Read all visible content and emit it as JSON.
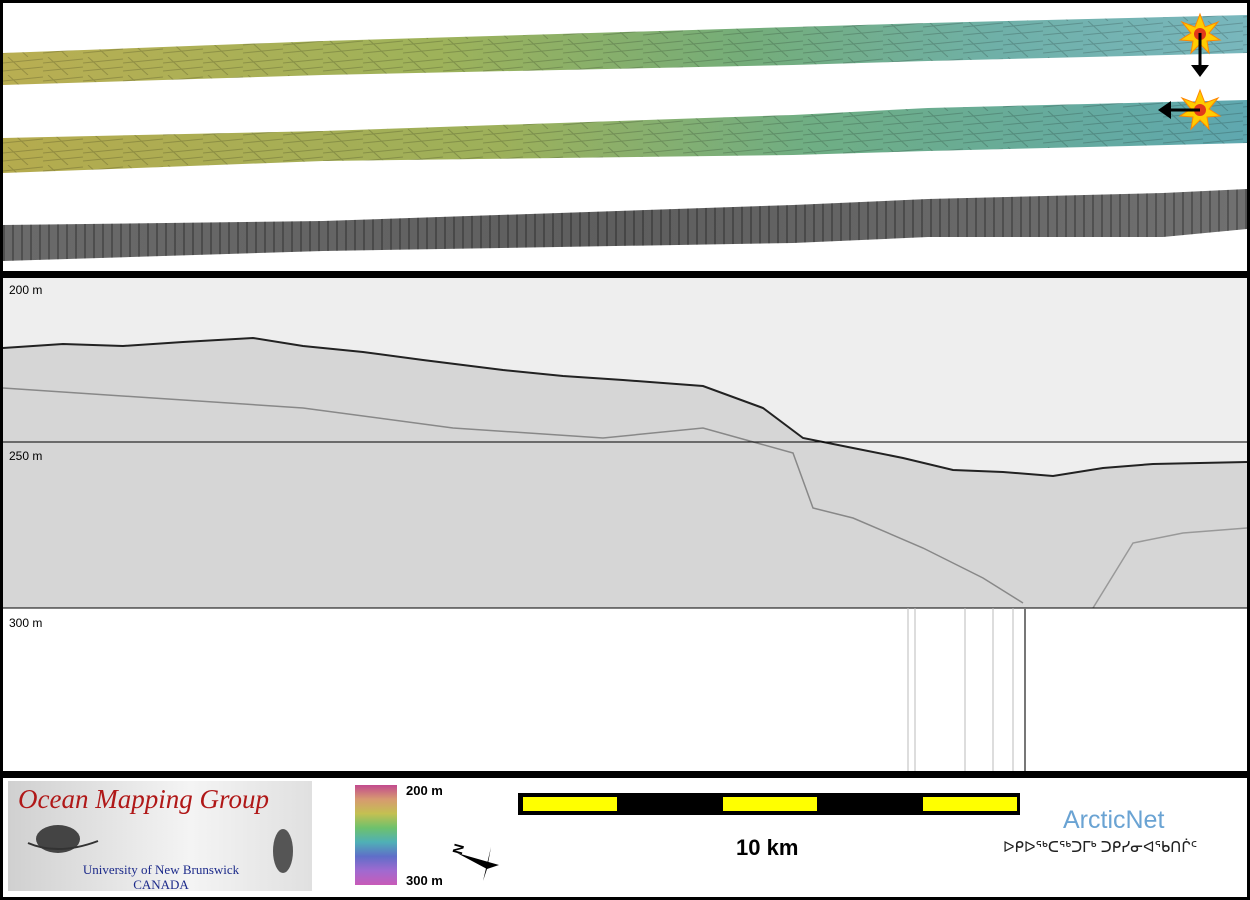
{
  "depth_labels": [
    "200 m",
    "250 m",
    "300 m"
  ],
  "organization": {
    "title": "Ocean Mapping Group",
    "university": "University of New Brunswick",
    "country": "CANADA"
  },
  "colorbar": {
    "top_label": "200 m",
    "bottom_label": "300 m"
  },
  "scale_bar": {
    "label": "10 km",
    "segment_colors": [
      "#ffff00",
      "#000000"
    ]
  },
  "north_arrow": {
    "letter": "N"
  },
  "partner": {
    "name": "ArcticNet",
    "syllabics": "ᐅᑭᐅᖅᑕᖅᑐᒥᒃ ᑐᑭᓯᓂᐊᖃᑎᒌᑦ"
  },
  "colors": {
    "frame": "#000000",
    "title_red": "#b01818",
    "sub_blue": "#1c2a8a",
    "arcticnet_blue": "#6aa3d3"
  }
}
